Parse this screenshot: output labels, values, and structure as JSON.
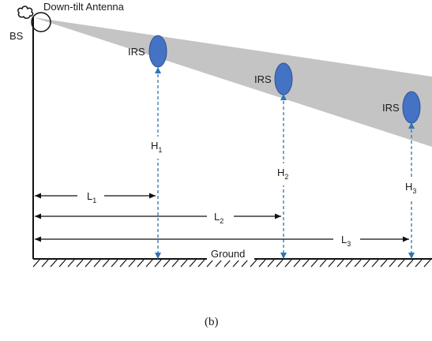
{
  "labels": {
    "antenna": "Down-tilt Antenna",
    "bs": "BS",
    "ground": "Ground",
    "caption": "(b)"
  },
  "irs": [
    {
      "label": "IRS",
      "height": "H",
      "height_sub": "1",
      "distance": "L",
      "distance_sub": "1"
    },
    {
      "label": "IRS",
      "height": "H",
      "height_sub": "2",
      "distance": "L",
      "distance_sub": "2"
    },
    {
      "label": "IRS",
      "height": "H",
      "height_sub": "3",
      "distance": "L",
      "distance_sub": "3"
    }
  ],
  "colors": {
    "beam": "#c4c4c4",
    "irs_fill": "#4472c4",
    "irs_stroke": "#2f5597",
    "dashed_line": "#2e75b6",
    "line": "#111111"
  }
}
